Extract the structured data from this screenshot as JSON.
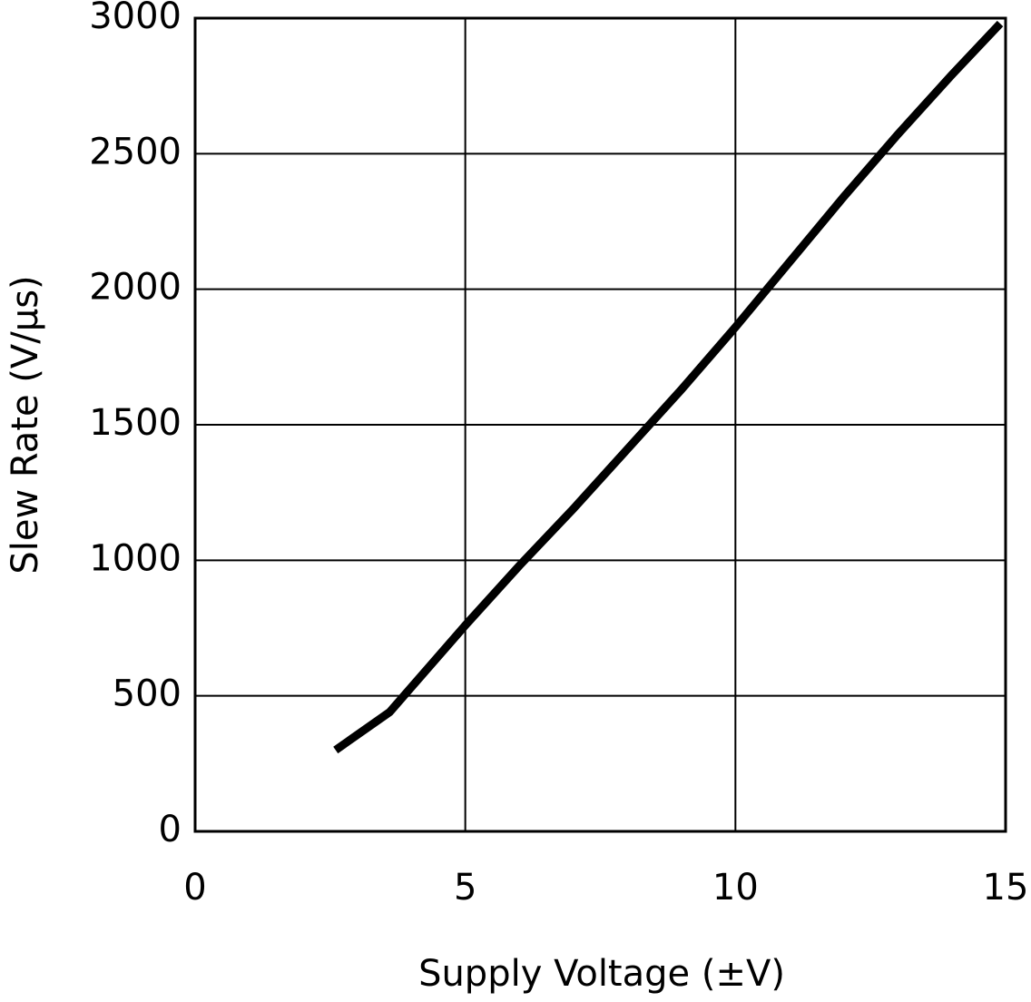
{
  "chart_data": {
    "type": "line",
    "x_label": "Supply Voltage (±V)",
    "y_label": "Slew Rate (V/μs)",
    "x": [
      2.6,
      3.6,
      4.3,
      5,
      6,
      7,
      8,
      9,
      10,
      11,
      12,
      13,
      14,
      14.9
    ],
    "series": [
      {
        "color": "#000000",
        "values": [
          300,
          440,
          600,
          760,
          980,
          1190,
          1410,
          1630,
          1860,
          2100,
          2340,
          2570,
          2790,
          2980
        ]
      }
    ],
    "xlim": [
      0,
      15
    ],
    "xticks": [
      0,
      5,
      10,
      15
    ],
    "ylim": [
      0,
      3000
    ],
    "yticks": [
      0,
      500,
      1000,
      1500,
      2000,
      2500,
      3000
    ],
    "grid": true
  }
}
